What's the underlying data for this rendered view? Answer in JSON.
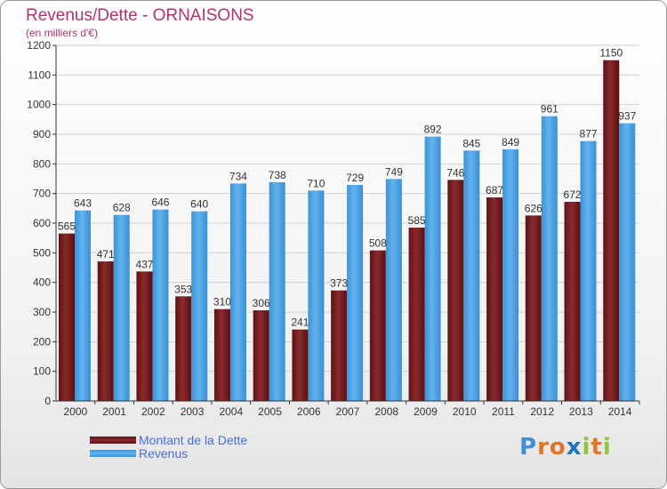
{
  "header": {
    "title": "Revenus/Dette - ORNAISONS",
    "unit": "(en milliers d'€)"
  },
  "chart_data": {
    "type": "bar",
    "categories": [
      "2000",
      "2001",
      "2002",
      "2003",
      "2004",
      "2005",
      "2006",
      "2007",
      "2008",
      "2009",
      "2010",
      "2011",
      "2012",
      "2013",
      "2014"
    ],
    "series": [
      {
        "name": "Montant de la Dette",
        "color": "#7a1f22",
        "values": [
          565,
          471,
          437,
          353,
          310,
          306,
          241,
          373,
          508,
          585,
          746,
          687,
          626,
          672,
          1150
        ]
      },
      {
        "name": "Revenus",
        "color": "#4fa3e3",
        "values": [
          643,
          628,
          646,
          640,
          734,
          738,
          710,
          729,
          749,
          892,
          845,
          849,
          961,
          877,
          937
        ]
      }
    ],
    "ylim": [
      0,
      1200
    ],
    "yticks": [
      0,
      100,
      200,
      300,
      400,
      500,
      600,
      700,
      800,
      900,
      1000,
      1100,
      1200
    ],
    "grid": true,
    "legend_position": "bottom-left"
  },
  "legend": {
    "items": [
      {
        "label": "Montant de la Dette",
        "color": "#7a1f22"
      },
      {
        "label": "Revenus",
        "color": "#4fa3e3"
      }
    ]
  },
  "logo": {
    "letters": [
      "P",
      "r",
      "o",
      "x",
      "i",
      "t",
      "i"
    ],
    "colors": [
      "#3d8fd6",
      "#e0762b",
      "#e0762b",
      "#1f73b7",
      "#8cc63f",
      "#e0762b",
      "#8cc63f"
    ]
  }
}
